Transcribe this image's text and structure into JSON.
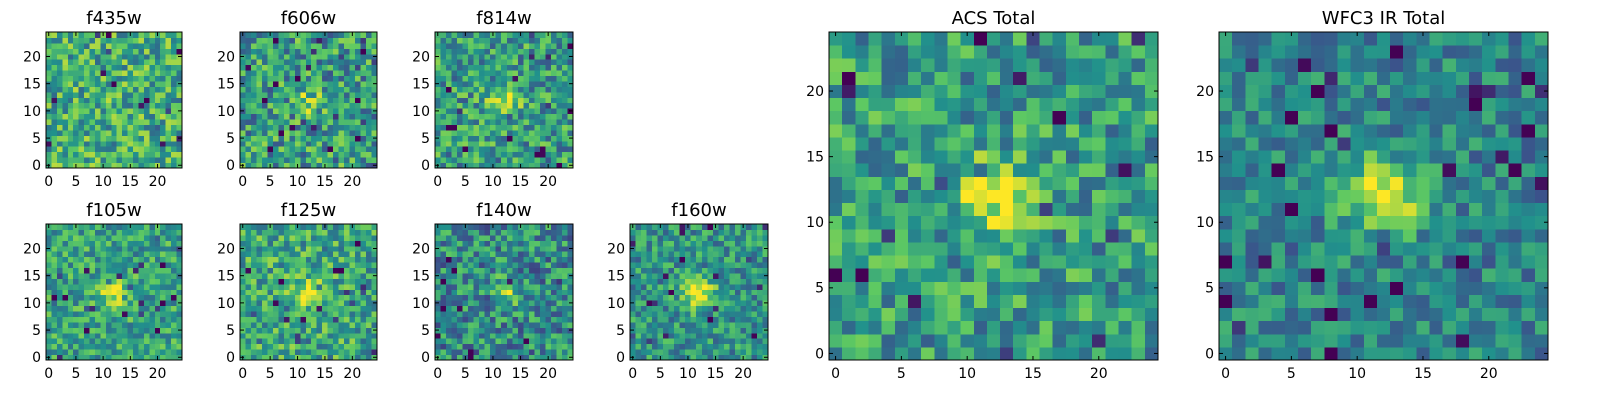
{
  "figure": {
    "panels": [
      {
        "id": "f435w",
        "title": "f435w",
        "seed": 435,
        "peak": 0.05,
        "noise": 0.55,
        "base": 0.62,
        "xticks": [
          "0",
          "5",
          "10",
          "15",
          "20"
        ],
        "yticks": [
          "0",
          "5",
          "10",
          "15",
          "20"
        ]
      },
      {
        "id": "f606w",
        "title": "f606w",
        "seed": 606,
        "peak": 0.22,
        "noise": 0.6,
        "base": 0.55,
        "xticks": [
          "0",
          "5",
          "10",
          "15",
          "20"
        ],
        "yticks": [
          "0",
          "5",
          "10",
          "15",
          "20"
        ]
      },
      {
        "id": "f814w",
        "title": "f814w",
        "seed": 814,
        "peak": 0.35,
        "noise": 0.55,
        "base": 0.55,
        "xticks": [
          "0",
          "5",
          "10",
          "15",
          "20"
        ],
        "yticks": [
          "0",
          "5",
          "10",
          "15",
          "20"
        ]
      },
      {
        "id": "f105w",
        "title": "f105w",
        "seed": 105,
        "peak": 0.38,
        "noise": 0.45,
        "base": 0.58,
        "xticks": [
          "0",
          "5",
          "10",
          "15",
          "20"
        ],
        "yticks": [
          "0",
          "5",
          "10",
          "15",
          "20"
        ]
      },
      {
        "id": "f125w",
        "title": "f125w",
        "seed": 125,
        "peak": 0.3,
        "noise": 0.5,
        "base": 0.6,
        "xticks": [
          "0",
          "5",
          "10",
          "15",
          "20"
        ],
        "yticks": [
          "0",
          "5",
          "10",
          "15",
          "20"
        ]
      },
      {
        "id": "f140w",
        "title": "f140w",
        "seed": 140,
        "peak": 0.35,
        "noise": 0.55,
        "base": 0.48,
        "xticks": [
          "0",
          "5",
          "10",
          "15",
          "20"
        ],
        "yticks": [
          "0",
          "5",
          "10",
          "15",
          "20"
        ]
      },
      {
        "id": "f160w",
        "title": "f160w",
        "seed": 160,
        "peak": 0.48,
        "noise": 0.45,
        "base": 0.52,
        "xticks": [
          "0",
          "5",
          "10",
          "15",
          "20"
        ],
        "yticks": [
          "0",
          "5",
          "10",
          "15",
          "20"
        ]
      },
      {
        "id": "acs-total",
        "title": "ACS Total",
        "seed": 77,
        "peak": 0.42,
        "noise": 0.5,
        "base": 0.55,
        "xticks": [
          "0",
          "5",
          "10",
          "15",
          "20"
        ],
        "yticks": [
          "0",
          "5",
          "10",
          "15",
          "20"
        ]
      },
      {
        "id": "wfc3-ir-total",
        "title": "WFC3 IR Total",
        "seed": 313,
        "peak": 0.55,
        "noise": 0.4,
        "base": 0.45,
        "xticks": [
          "0",
          "5",
          "10",
          "15",
          "20"
        ],
        "yticks": [
          "0",
          "5",
          "10",
          "15",
          "20"
        ]
      }
    ]
  },
  "chart_data": [
    {
      "type": "heatmap",
      "title": "f435w",
      "grid": [
        25,
        25
      ],
      "xlim": [
        -0.5,
        24.5
      ],
      "ylim": [
        -0.5,
        24.5
      ],
      "colormap": "viridis"
    },
    {
      "type": "heatmap",
      "title": "f606w",
      "grid": [
        25,
        25
      ],
      "xlim": [
        -0.5,
        24.5
      ],
      "ylim": [
        -0.5,
        24.5
      ],
      "colormap": "viridis"
    },
    {
      "type": "heatmap",
      "title": "f814w",
      "grid": [
        25,
        25
      ],
      "xlim": [
        -0.5,
        24.5
      ],
      "ylim": [
        -0.5,
        24.5
      ],
      "colormap": "viridis"
    },
    {
      "type": "heatmap",
      "title": "f105w",
      "grid": [
        25,
        25
      ],
      "xlim": [
        -0.5,
        24.5
      ],
      "ylim": [
        -0.5,
        24.5
      ],
      "colormap": "viridis"
    },
    {
      "type": "heatmap",
      "title": "f125w",
      "grid": [
        25,
        25
      ],
      "xlim": [
        -0.5,
        24.5
      ],
      "ylim": [
        -0.5,
        24.5
      ],
      "colormap": "viridis"
    },
    {
      "type": "heatmap",
      "title": "f140w",
      "grid": [
        25,
        25
      ],
      "xlim": [
        -0.5,
        24.5
      ],
      "ylim": [
        -0.5,
        24.5
      ],
      "colormap": "viridis"
    },
    {
      "type": "heatmap",
      "title": "f160w",
      "grid": [
        25,
        25
      ],
      "xlim": [
        -0.5,
        24.5
      ],
      "ylim": [
        -0.5,
        24.5
      ],
      "colormap": "viridis"
    },
    {
      "type": "heatmap",
      "title": "ACS Total",
      "grid": [
        25,
        25
      ],
      "xlim": [
        -0.5,
        24.5
      ],
      "ylim": [
        -0.5,
        24.5
      ],
      "colormap": "viridis"
    },
    {
      "type": "heatmap",
      "title": "WFC3 IR Total",
      "grid": [
        25,
        25
      ],
      "xlim": [
        -0.5,
        24.5
      ],
      "ylim": [
        -0.5,
        24.5
      ],
      "colormap": "viridis"
    }
  ],
  "colormap": [
    "#440154",
    "#3b528b",
    "#21918c",
    "#5ec962",
    "#fde725"
  ]
}
